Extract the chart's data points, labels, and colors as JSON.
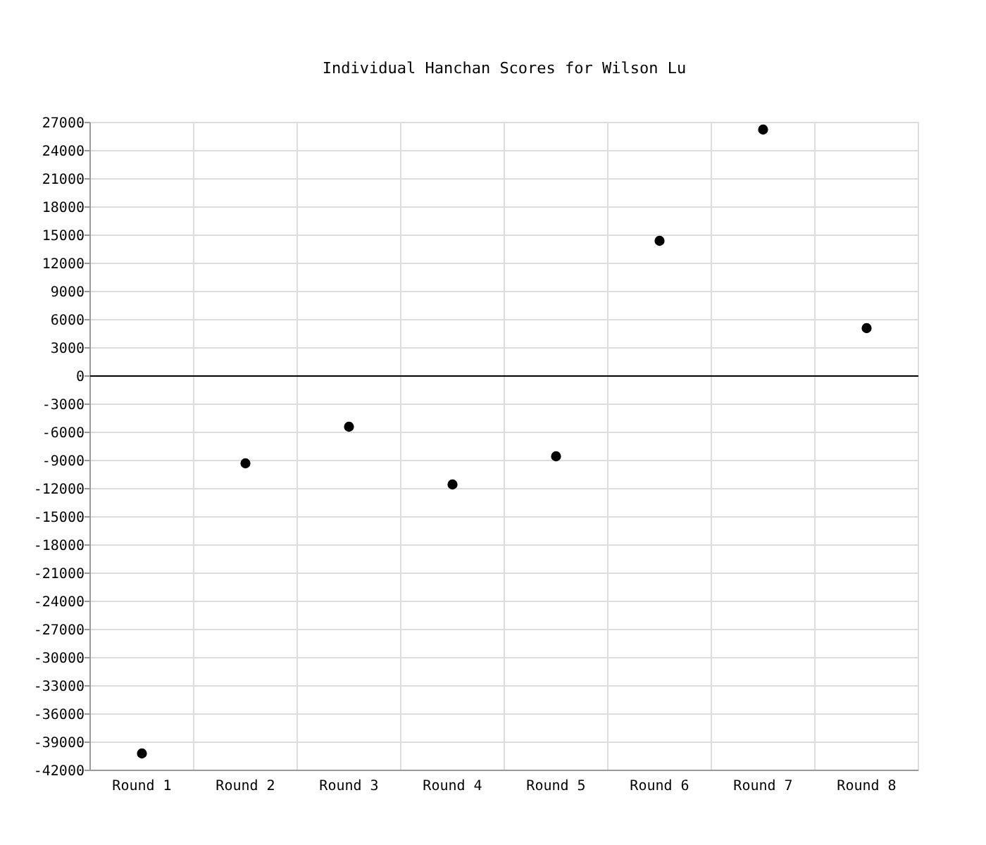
{
  "chart_data": {
    "type": "scatter",
    "title": "Individual Hanchan Scores for Wilson Lu",
    "categories": [
      "Round 1",
      "Round 2",
      "Round 3",
      "Round 4",
      "Round 5",
      "Round 6",
      "Round 7",
      "Round 8"
    ],
    "values": [
      -40200,
      -9300,
      -5400,
      -11550,
      -8550,
      14400,
      26250,
      5100
    ],
    "color": "#000000",
    "marker": "circle",
    "grid": true,
    "ylim": [
      -42000,
      27000
    ],
    "yticks": [
      -42000,
      -39000,
      -36000,
      -33000,
      -30000,
      -27000,
      -24000,
      -21000,
      -18000,
      -15000,
      -12000,
      -9000,
      -6000,
      -3000,
      0,
      3000,
      6000,
      9000,
      12000,
      15000,
      18000,
      21000,
      24000,
      27000
    ],
    "ref_lines": [
      {
        "axis": "y",
        "value": 0,
        "color": "#000000"
      }
    ]
  }
}
